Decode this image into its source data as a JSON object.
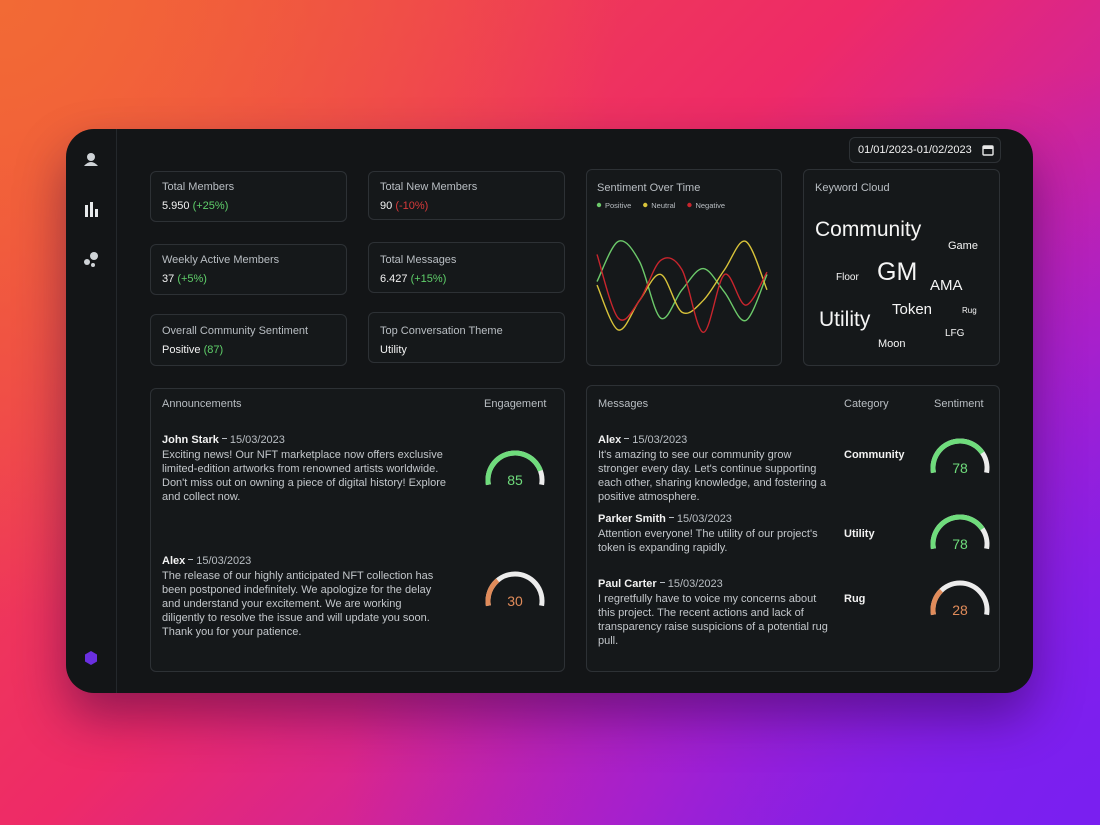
{
  "date_range": "01/01/2023-01/02/2023",
  "stats": [
    {
      "label": "Total Members",
      "value": "5.950",
      "change": "(+25%)",
      "change_color": "#5fcf6a"
    },
    {
      "label": "Total New Members",
      "value": "90",
      "change": "(-10%)",
      "change_color": "#d83a3a"
    },
    {
      "label": "Weekly Active Members",
      "value": "37",
      "change": "(+5%)",
      "change_color": "#5fcf6a"
    },
    {
      "label": "Total Messages",
      "value": "6.427",
      "change": "(+15%)",
      "change_color": "#5fcf6a"
    },
    {
      "label": "Overall Community Sentiment",
      "value": "Positive",
      "change": "(87)",
      "change_color": "#5fcf6a"
    },
    {
      "label": "Top Conversation Theme",
      "value": "Utility"
    }
  ],
  "sentiment_chart": {
    "type": "line",
    "title": "Sentiment Over Time",
    "ylim": [
      0,
      100
    ],
    "series": [
      {
        "name": "Positive",
        "color": "#6cc96a",
        "values": [
          58,
          92,
          75,
          27,
          51,
          69,
          49,
          25,
          64
        ]
      },
      {
        "name": "Neutral",
        "color": "#d8c33a",
        "values": [
          55,
          17,
          42,
          64,
          32,
          42,
          68,
          92,
          51
        ]
      },
      {
        "name": "Negative",
        "color": "#c8252d",
        "values": [
          81,
          27,
          42,
          76,
          68,
          15,
          64,
          38,
          66
        ]
      }
    ]
  },
  "keyword_cloud": {
    "title": "Keyword Cloud",
    "words": [
      "Community",
      "Game",
      "Floor",
      "GM",
      "AMA",
      "Utility",
      "Token",
      "Rug",
      "Moon",
      "LFG"
    ]
  },
  "announcements": {
    "title": "Announcements",
    "column": "Engagement",
    "range": [
      0,
      100
    ],
    "items": [
      {
        "author": "John Stark",
        "date": "15/03/2023",
        "text": "Exciting news! Our NFT marketplace now offers exclusive limited-edition artworks from renowned artists worldwide. Don't miss out on owning a piece of digital history! Explore and collect now.",
        "engagement": 85,
        "color": "#6fdc7c"
      },
      {
        "author": "Alex",
        "date": "15/03/2023",
        "text": "The release of our highly anticipated NFT collection has been postponed indefinitely. We apologize for the delay and understand your excitement. We are working diligently to resolve the issue and will update you soon. Thank you for your patience.",
        "engagement": 30,
        "color": "#e08b5a"
      }
    ]
  },
  "messages": {
    "title": "Messages",
    "columns": [
      "Category",
      "Sentiment"
    ],
    "range": [
      0,
      100
    ],
    "items": [
      {
        "author": "Alex",
        "date": "15/03/2023",
        "text": "It's amazing to see our community grow stronger every day. Let's continue supporting each other, sharing knowledge, and fostering a positive atmosphere.",
        "category": "Community",
        "sentiment": 78,
        "color": "#6fdc7c"
      },
      {
        "author": "Parker Smith",
        "date": "15/03/2023",
        "text": "Attention everyone! The utility of our project's token is expanding rapidly.",
        "category": "Utility",
        "sentiment": 78,
        "color": "#6fdc7c"
      },
      {
        "author": "Paul Carter",
        "date": "15/03/2023",
        "text": "I regretfully have to voice my concerns about this project. The recent actions and lack of transparency raise suspicions of a potential rug pull.",
        "category": "Rug",
        "sentiment": 28,
        "color": "#e08b5a"
      }
    ]
  }
}
